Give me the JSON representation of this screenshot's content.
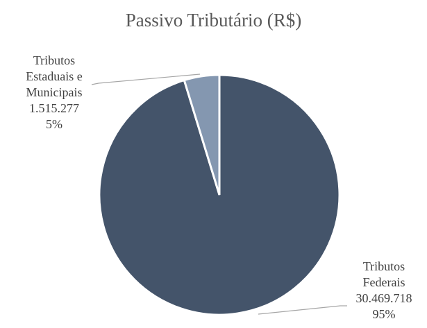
{
  "chart_data": {
    "type": "pie",
    "title": "Passivo Tributário (R$)",
    "categories": [
      "Tributos Federais",
      "Tributos Estaduais e Municipais"
    ],
    "values": [
      30469718,
      1515277
    ],
    "value_labels": [
      "30.469.718",
      "1.515.277"
    ],
    "percent_labels": [
      "95%",
      "5%"
    ],
    "colors": [
      "#44546a",
      "#8497b0"
    ]
  }
}
